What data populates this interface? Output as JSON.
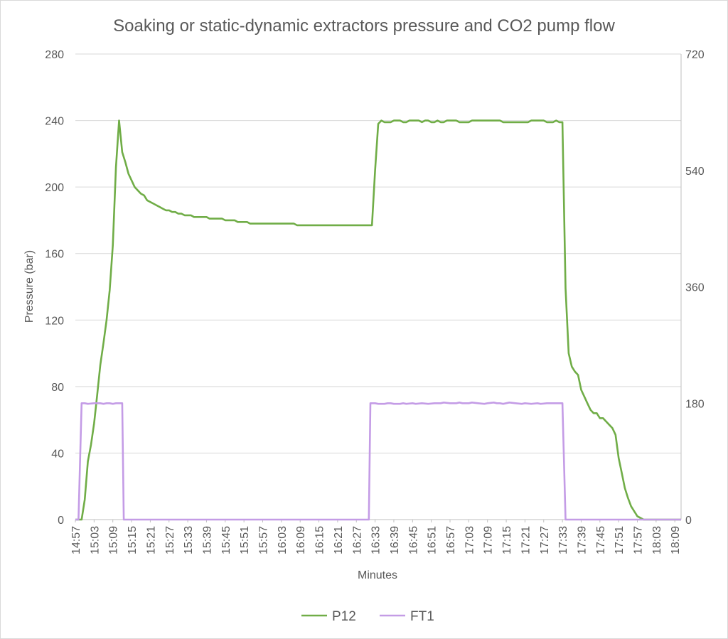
{
  "chart_data": {
    "type": "line",
    "title": "Soaking or static-dynamic extractors pressure and CO2 pump flow",
    "xlabel": "Minutes",
    "ylabel": "Pressure (bar)",
    "ylabel_right": "",
    "ylim": [
      0,
      280
    ],
    "ylim_right": [
      0,
      720
    ],
    "yticks": [
      0,
      40,
      80,
      120,
      160,
      200,
      240,
      280
    ],
    "yticks_right": [
      0,
      180,
      360,
      540,
      720
    ],
    "x_tick_labels": [
      "14:57",
      "15:03",
      "15:09",
      "15:15",
      "15:21",
      "15:27",
      "15:33",
      "15:39",
      "15:45",
      "15:51",
      "15:57",
      "16:03",
      "16:09",
      "16:15",
      "16:21",
      "16:27",
      "16:33",
      "16:39",
      "16:45",
      "16:51",
      "16:57",
      "17:03",
      "17:09",
      "17:15",
      "17:21",
      "17:27",
      "17:33",
      "17:39",
      "17:45",
      "17:51",
      "17:57",
      "18:03",
      "18:09"
    ],
    "x_range_minutes": [
      0,
      194
    ],
    "grid": true,
    "legend_position": "bottom",
    "series": [
      {
        "name": "P12",
        "axis": "left",
        "color": "#70ad47",
        "points": [
          [
            0,
            0
          ],
          [
            2,
            0
          ],
          [
            3,
            12
          ],
          [
            4,
            35
          ],
          [
            5,
            45
          ],
          [
            6,
            58
          ],
          [
            7,
            75
          ],
          [
            8,
            93
          ],
          [
            9,
            106
          ],
          [
            10,
            120
          ],
          [
            11,
            138
          ],
          [
            12,
            165
          ],
          [
            13,
            212
          ],
          [
            14,
            240
          ],
          [
            15,
            221
          ],
          [
            16,
            215
          ],
          [
            17,
            208
          ],
          [
            18,
            204
          ],
          [
            19,
            200
          ],
          [
            20,
            198
          ],
          [
            21,
            196
          ],
          [
            22,
            195
          ],
          [
            23,
            192
          ],
          [
            24,
            191
          ],
          [
            25,
            190
          ],
          [
            26,
            189
          ],
          [
            27,
            188
          ],
          [
            28,
            187
          ],
          [
            29,
            186
          ],
          [
            30,
            186
          ],
          [
            31,
            185
          ],
          [
            32,
            185
          ],
          [
            33,
            184
          ],
          [
            34,
            184
          ],
          [
            35,
            183
          ],
          [
            36,
            183
          ],
          [
            37,
            183
          ],
          [
            38,
            182
          ],
          [
            40,
            182
          ],
          [
            42,
            182
          ],
          [
            43,
            181
          ],
          [
            47,
            181
          ],
          [
            48,
            180
          ],
          [
            51,
            180
          ],
          [
            52,
            179
          ],
          [
            55,
            179
          ],
          [
            56,
            178
          ],
          [
            70,
            178
          ],
          [
            71,
            177
          ],
          [
            94,
            177
          ],
          [
            95,
            177
          ],
          [
            96,
            210
          ],
          [
            97,
            238
          ],
          [
            98,
            240
          ],
          [
            99,
            239
          ],
          [
            101,
            239
          ],
          [
            102,
            240
          ],
          [
            104,
            240
          ],
          [
            105,
            239
          ],
          [
            106,
            239
          ],
          [
            107,
            240
          ],
          [
            110,
            240
          ],
          [
            111,
            239
          ],
          [
            112,
            240
          ],
          [
            113,
            240
          ],
          [
            114,
            239
          ],
          [
            115,
            239
          ],
          [
            116,
            240
          ],
          [
            117,
            239
          ],
          [
            118,
            239
          ],
          [
            119,
            240
          ],
          [
            122,
            240
          ],
          [
            123,
            239
          ],
          [
            126,
            239
          ],
          [
            127,
            240
          ],
          [
            136,
            240
          ],
          [
            137,
            239
          ],
          [
            145,
            239
          ],
          [
            146,
            240
          ],
          [
            150,
            240
          ],
          [
            151,
            239
          ],
          [
            153,
            239
          ],
          [
            154,
            240
          ],
          [
            155,
            239
          ],
          [
            156,
            239
          ],
          [
            157,
            139
          ],
          [
            158,
            100
          ],
          [
            159,
            92
          ],
          [
            160,
            89
          ],
          [
            161,
            87
          ],
          [
            162,
            78
          ],
          [
            163,
            74
          ],
          [
            164,
            70
          ],
          [
            165,
            66
          ],
          [
            166,
            64
          ],
          [
            167,
            64
          ],
          [
            168,
            61
          ],
          [
            169,
            61
          ],
          [
            170,
            59
          ],
          [
            171,
            57
          ],
          [
            172,
            55
          ],
          [
            173,
            51
          ],
          [
            174,
            37
          ],
          [
            175,
            28
          ],
          [
            176,
            19
          ],
          [
            177,
            13
          ],
          [
            178,
            8
          ],
          [
            179,
            5
          ],
          [
            180,
            2
          ],
          [
            181,
            1
          ],
          [
            182,
            0
          ],
          [
            194,
            0
          ]
        ]
      },
      {
        "name": "FT1",
        "axis": "right",
        "color": "#c49ce6",
        "points": [
          [
            0,
            0
          ],
          [
            1,
            0
          ],
          [
            2,
            180
          ],
          [
            3,
            180
          ],
          [
            4,
            179
          ],
          [
            6,
            180
          ],
          [
            8,
            180
          ],
          [
            9,
            179
          ],
          [
            10,
            180
          ],
          [
            11,
            180
          ],
          [
            12,
            179
          ],
          [
            13,
            180
          ],
          [
            15,
            180
          ],
          [
            15.5,
            0
          ],
          [
            92,
            0
          ],
          [
            93,
            0
          ],
          [
            94,
            0
          ],
          [
            94.5,
            180
          ],
          [
            96,
            180
          ],
          [
            97,
            179
          ],
          [
            99,
            179
          ],
          [
            100,
            180
          ],
          [
            101,
            180
          ],
          [
            102,
            179
          ],
          [
            104,
            179
          ],
          [
            105,
            180
          ],
          [
            106,
            179
          ],
          [
            108,
            180
          ],
          [
            109,
            179
          ],
          [
            111,
            180
          ],
          [
            113,
            179
          ],
          [
            115,
            180
          ],
          [
            117,
            180
          ],
          [
            118,
            181
          ],
          [
            120,
            180
          ],
          [
            122,
            180
          ],
          [
            123,
            181
          ],
          [
            124,
            180
          ],
          [
            126,
            180
          ],
          [
            127,
            181
          ],
          [
            129,
            180
          ],
          [
            131,
            179
          ],
          [
            132,
            180
          ],
          [
            134,
            181
          ],
          [
            135,
            180
          ],
          [
            136,
            180
          ],
          [
            137,
            179
          ],
          [
            139,
            181
          ],
          [
            141,
            180
          ],
          [
            143,
            179
          ],
          [
            144,
            180
          ],
          [
            146,
            179
          ],
          [
            148,
            180
          ],
          [
            149,
            179
          ],
          [
            151,
            180
          ],
          [
            155,
            180
          ],
          [
            156,
            180
          ],
          [
            157,
            0
          ],
          [
            194,
            0
          ]
        ]
      }
    ]
  }
}
